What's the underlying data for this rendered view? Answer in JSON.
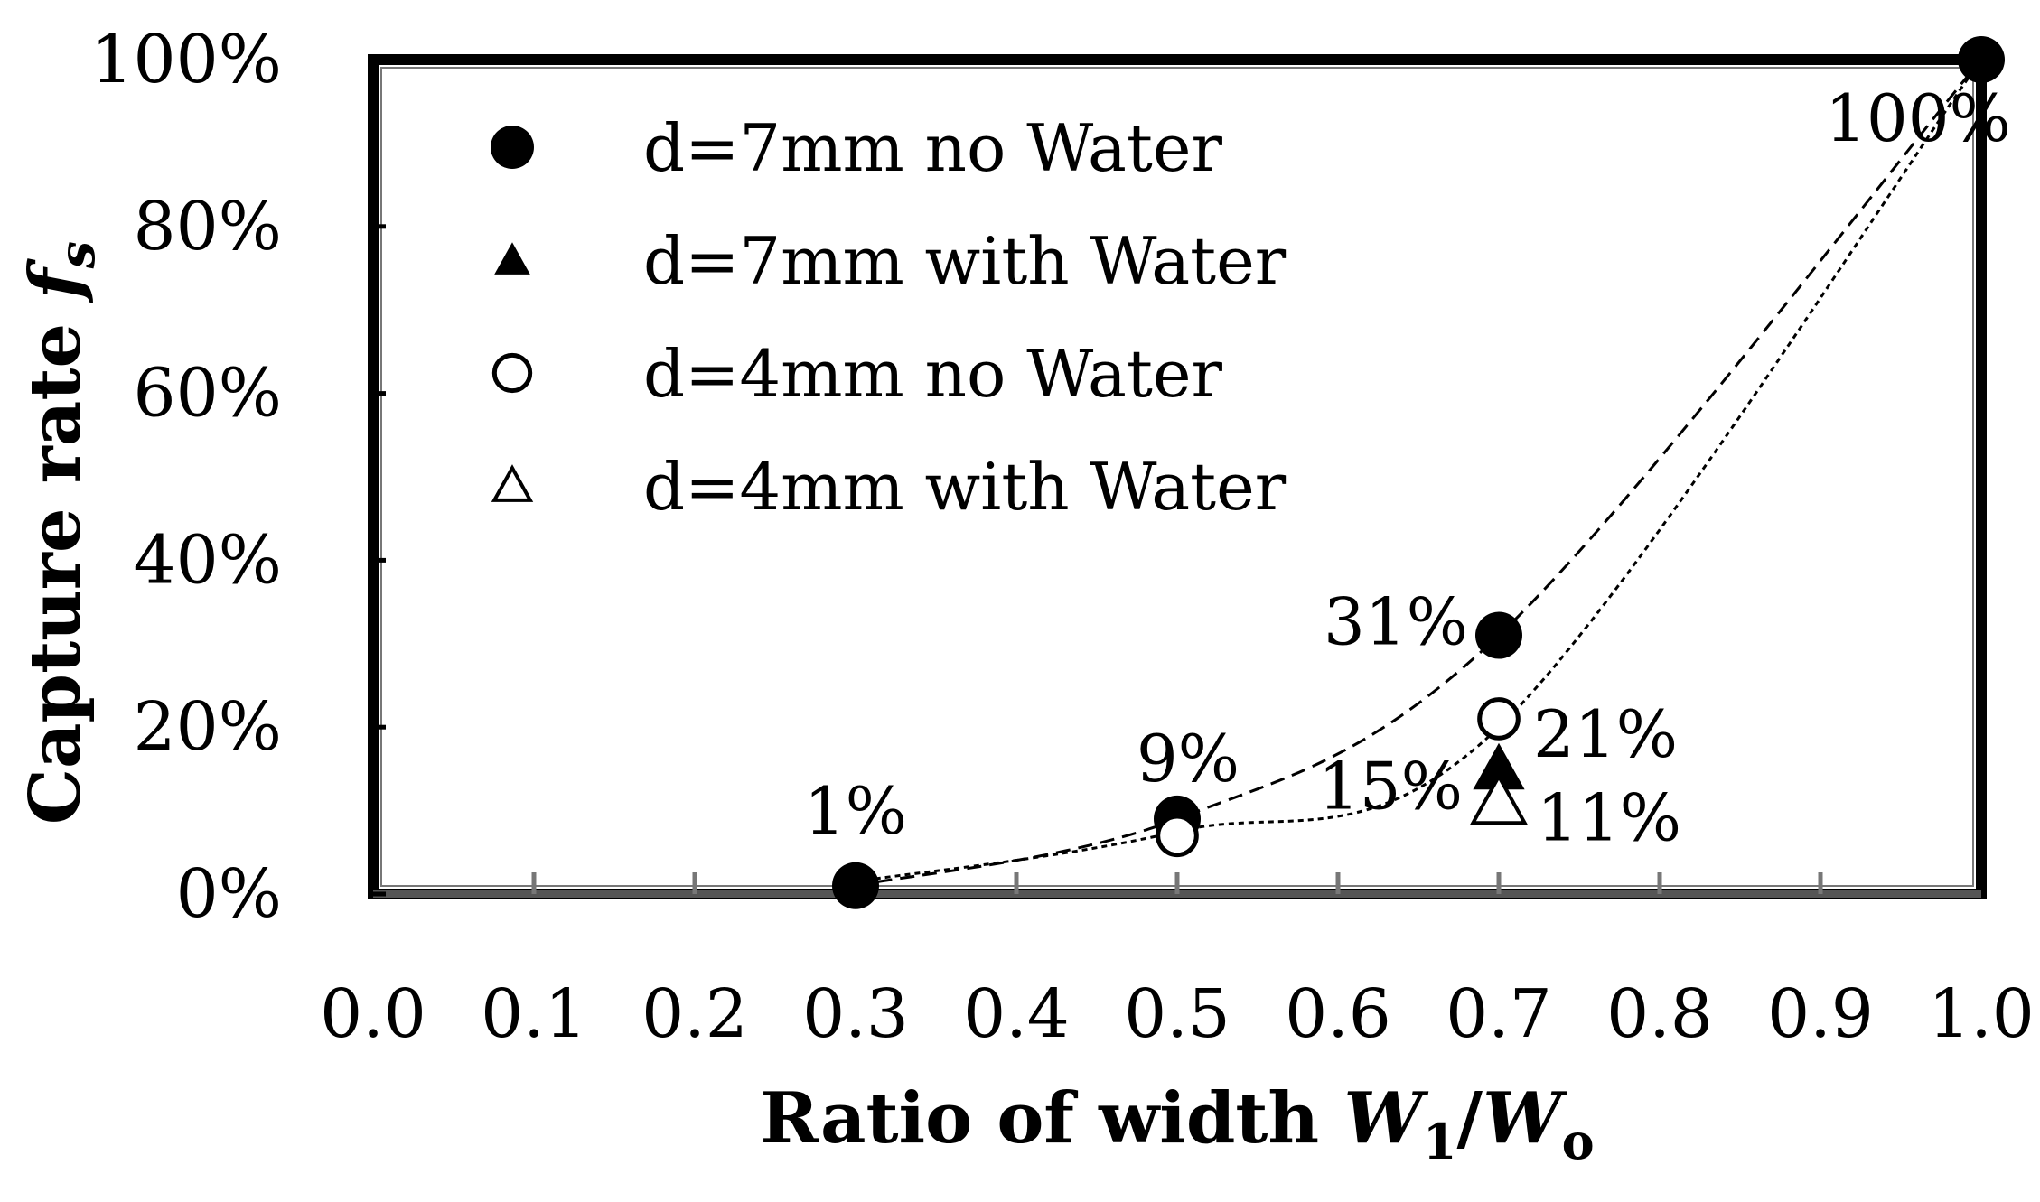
{
  "chart_data": {
    "type": "scatter",
    "xlabel": {
      "text": "Ratio of width ",
      "var": "W",
      "sub1": "1",
      "slash": "/",
      "var2": "W",
      "sub2": "o"
    },
    "ylabel": {
      "text": "Capture rate ",
      "var": "f",
      "sub": "s"
    },
    "xlim": [
      0.0,
      1.0
    ],
    "ylim": [
      0,
      100
    ],
    "xticks": [
      "0.0",
      "0.1",
      "0.2",
      "0.3",
      "0.4",
      "0.5",
      "0.6",
      "0.7",
      "0.8",
      "0.9",
      "1.0"
    ],
    "yticks": [
      "0%",
      "20%",
      "40%",
      "60%",
      "80%",
      "100%"
    ],
    "grid": false,
    "legend_position": "top-left",
    "series": [
      {
        "name": "d=7mm no Water",
        "marker": "filled-circle",
        "x": [
          0.3,
          0.5,
          0.7,
          1.0
        ],
        "y": [
          1,
          9,
          31,
          100
        ]
      },
      {
        "name": "d=7mm with Water",
        "marker": "filled-triangle",
        "x": [
          0.7
        ],
        "y": [
          15
        ]
      },
      {
        "name": "d=4mm no Water",
        "marker": "open-circle",
        "x": [
          0.5,
          0.7
        ],
        "y": [
          7,
          21
        ]
      },
      {
        "name": "d=4mm with Water",
        "marker": "open-triangle",
        "x": [
          0.7
        ],
        "y": [
          11
        ]
      }
    ],
    "trendlines": [
      {
        "style": "dashed",
        "points": [
          [
            0.3,
            1
          ],
          [
            0.5,
            9
          ],
          [
            0.7,
            31
          ],
          [
            1.0,
            100
          ]
        ]
      },
      {
        "style": "dotted",
        "points": [
          [
            0.3,
            1.5
          ],
          [
            0.5,
            7.5
          ],
          [
            0.7,
            20
          ],
          [
            1.0,
            100
          ]
        ]
      }
    ],
    "annotations": [
      {
        "text": "1%",
        "x": 0.3,
        "y": 1
      },
      {
        "text": "9%",
        "x": 0.5,
        "y": 9
      },
      {
        "text": "31%",
        "x": 0.7,
        "y": 31
      },
      {
        "text": "100%",
        "x": 1.0,
        "y": 100
      },
      {
        "text": "15%",
        "x": 0.7,
        "y": 15
      },
      {
        "text": "21%",
        "x": 0.7,
        "y": 21
      },
      {
        "text": "11%",
        "x": 0.7,
        "y": 11
      }
    ]
  }
}
